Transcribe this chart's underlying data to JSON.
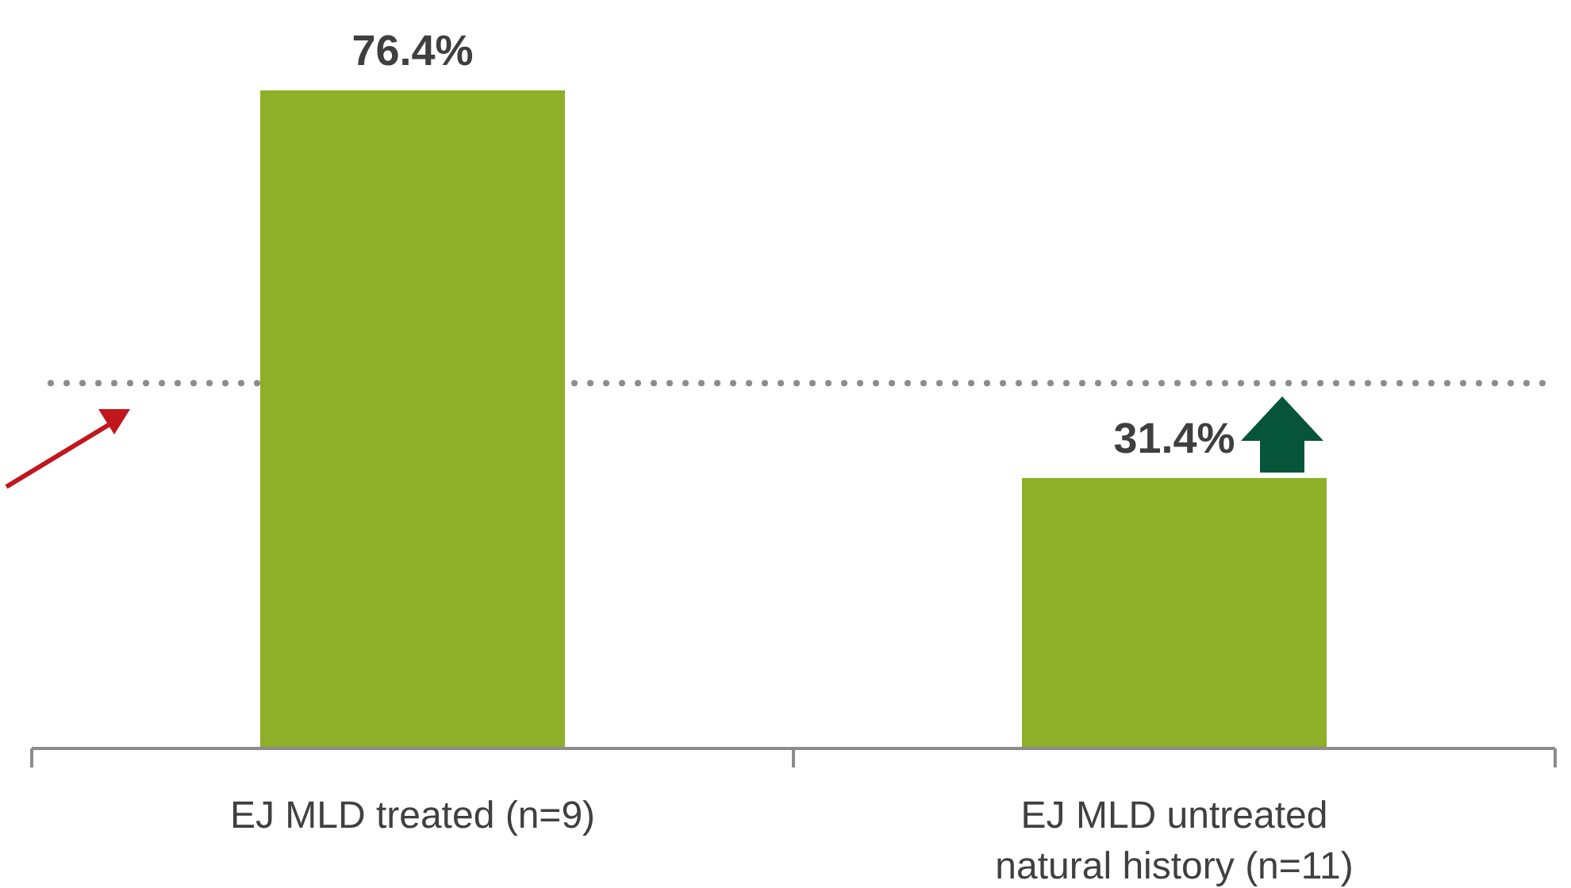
{
  "chart_data": {
    "type": "bar",
    "categories": [
      "EJ MLD treated (n=9)",
      "EJ MLD untreated natural history (n=11)"
    ],
    "values": [
      76.4,
      31.4
    ],
    "color": "#8db028",
    "value_labels": [
      "76.4%",
      "31.4%"
    ],
    "ref_lines": [
      {
        "axis": "y",
        "value": 42.4,
        "color": "#8c8c8c",
        "line_style": "dotted"
      }
    ]
  }
}
